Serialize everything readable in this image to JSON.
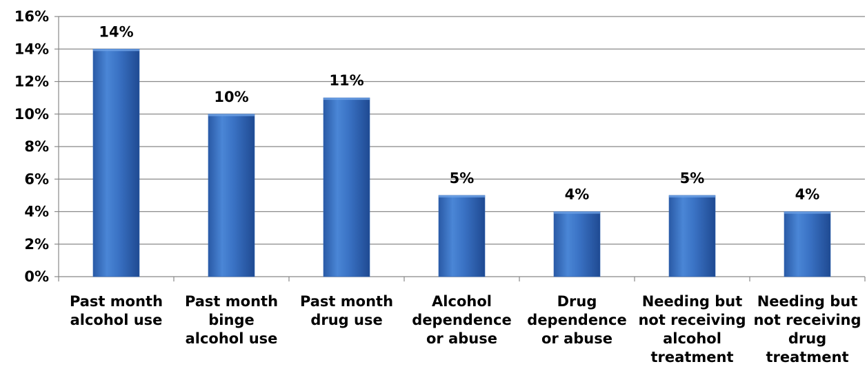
{
  "chart_data": {
    "type": "bar",
    "categories": [
      [
        "Past month",
        "alcohol use"
      ],
      [
        "Past month",
        "binge",
        "alcohol use"
      ],
      [
        "Past month",
        "drug use"
      ],
      [
        "Alcohol",
        "dependence",
        "or abuse"
      ],
      [
        "Drug",
        "dependence",
        "or abuse"
      ],
      [
        "Needing but",
        "not receiving",
        "alcohol",
        "treatment"
      ],
      [
        "Needing but",
        "not receiving",
        "drug",
        "treatment"
      ]
    ],
    "values": [
      14,
      10,
      11,
      5,
      4,
      5,
      4
    ],
    "data_labels": [
      "14%",
      "10%",
      "11%",
      "5%",
      "4%",
      "5%",
      "4%"
    ],
    "y_ticks": [
      0,
      2,
      4,
      6,
      8,
      10,
      12,
      14,
      16
    ],
    "y_tick_labels": [
      "0%",
      "2%",
      "4%",
      "6%",
      "8%",
      "10%",
      "12%",
      "14%",
      "16%"
    ],
    "ylim": [
      0,
      16
    ],
    "grid": true,
    "bar_color": "#3A70C0",
    "title": "",
    "xlabel": "",
    "ylabel": ""
  }
}
